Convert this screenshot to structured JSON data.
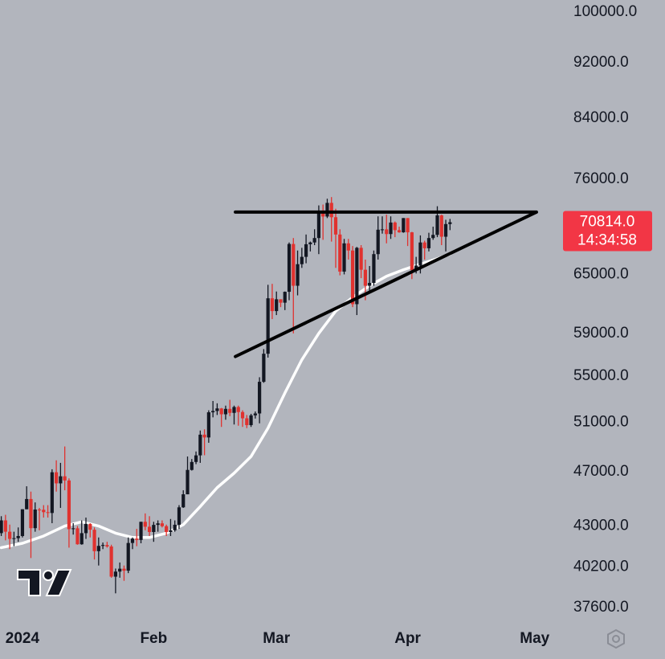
{
  "chart_data": {
    "type": "candlestick",
    "log_scale": true,
    "x": [
      -5,
      -4,
      -3,
      -2,
      -1,
      0,
      1,
      2,
      3,
      4,
      5,
      6,
      7,
      8,
      9,
      10,
      11,
      12,
      13,
      14,
      15,
      16,
      17,
      18,
      19,
      20,
      21,
      22,
      23,
      24,
      25,
      26,
      27,
      28,
      29,
      30,
      31,
      32,
      33,
      34,
      35,
      36,
      37,
      38,
      39,
      40,
      41,
      42,
      43,
      44,
      45,
      46,
      47,
      48,
      49,
      50,
      51,
      52,
      53,
      54,
      55,
      56,
      57,
      58,
      59,
      60,
      61,
      62,
      63,
      64,
      65,
      66,
      67,
      68,
      69,
      70,
      71,
      72,
      73,
      74,
      75,
      76,
      77,
      78,
      79,
      80,
      81,
      82,
      83,
      84,
      85,
      86,
      87,
      88,
      89,
      90,
      91,
      92,
      93,
      94,
      95,
      96,
      97,
      98,
      99,
      100,
      101
    ],
    "open": [
      42500,
      43400,
      42600,
      42100,
      42150,
      42300,
      44200,
      44950,
      42850,
      44180,
      44160,
      43990,
      43930,
      46970,
      46120,
      46660,
      46340,
      42780,
      42840,
      41730,
      42500,
      43150,
      42740,
      41260,
      41620,
      41680,
      41580,
      39570,
      39900,
      40090,
      39960,
      41820,
      42120,
      42030,
      43300,
      42950,
      42580,
      43080,
      43190,
      42990,
      42580,
      42700,
      43090,
      44340,
      45300,
      47150,
      47770,
      48290,
      49960,
      49730,
      51830,
      51940,
      52160,
      51660,
      52120,
      51780,
      52280,
      51850,
      51320,
      50750,
      51570,
      51730,
      54490,
      57060,
      62500,
      61200,
      62400,
      62050,
      63170,
      68330,
      63800,
      66100,
      66900,
      68300,
      68500,
      69000,
      72100,
      71480,
      73100,
      71400,
      69400,
      65300,
      68400,
      67600,
      61900,
      67900,
      65500,
      63800,
      64100,
      67200,
      69950,
      69990,
      69450,
      70780,
      69900,
      69650,
      71300,
      69650,
      65450,
      65950,
      68500,
      67850,
      69000,
      69360,
      71620,
      69150,
      70600
    ],
    "high": [
      43700,
      43800,
      43100,
      42600,
      42900,
      44200,
      45900,
      45500,
      44700,
      44300,
      44500,
      44500,
      47200,
      47900,
      47700,
      49000,
      46500,
      43200,
      43000,
      43400,
      43600,
      43200,
      42900,
      42200,
      41850,
      41900,
      41700,
      40100,
      40500,
      40300,
      42200,
      42200,
      42800,
      43300,
      43900,
      43700,
      43300,
      43400,
      43400,
      43100,
      43500,
      43400,
      44500,
      45600,
      48200,
      48000,
      48600,
      50300,
      50400,
      52000,
      52800,
      52600,
      52200,
      52400,
      52900,
      52400,
      52400,
      52000,
      51600,
      51700,
      51900,
      54900,
      57500,
      63900,
      64000,
      63200,
      62400,
      63200,
      68500,
      69000,
      67600,
      67900,
      69400,
      68600,
      70000,
      72800,
      72900,
      73600,
      73800,
      72400,
      70000,
      68900,
      68900,
      68100,
      68000,
      68200,
      66600,
      65900,
      67600,
      71500,
      71500,
      71700,
      71500,
      70900,
      70300,
      71300,
      71300,
      69700,
      66900,
      69300,
      68700,
      69600,
      70300,
      72700,
      71700,
      71100,
      71200
    ],
    "low": [
      42300,
      42000,
      41400,
      41600,
      41900,
      42200,
      44200,
      40800,
      42600,
      42700,
      43600,
      43600,
      43200,
      45500,
      44300,
      45600,
      41500,
      42400,
      41700,
      41700,
      42100,
      42200,
      40700,
      40300,
      41400,
      41500,
      39500,
      38500,
      39500,
      39300,
      39800,
      41400,
      41600,
      41800,
      42700,
      42300,
      41900,
      42600,
      42900,
      42300,
      42300,
      42600,
      42800,
      44300,
      45300,
      47100,
      47600,
      47700,
      48300,
      49300,
      51400,
      51600,
      50600,
      51200,
      51500,
      50800,
      50700,
      50600,
      50500,
      50600,
      51300,
      50900,
      54400,
      56700,
      60400,
      60800,
      61600,
      61300,
      62300,
      59000,
      62800,
      65700,
      66200,
      67500,
      68200,
      67200,
      68800,
      71300,
      68600,
      65700,
      64900,
      65000,
      66600,
      61600,
      60800,
      64600,
      62300,
      63300,
      63800,
      66600,
      69500,
      68400,
      68900,
      69100,
      69600,
      69600,
      68100,
      64500,
      65100,
      65100,
      66600,
      67500,
      68800,
      69100,
      68200,
      67500,
      69900
    ],
    "close": [
      43400,
      42600,
      42100,
      42150,
      42300,
      44200,
      44950,
      42850,
      44180,
      44160,
      43990,
      43930,
      46970,
      46120,
      46660,
      46340,
      42780,
      42840,
      41730,
      42500,
      43150,
      42740,
      41260,
      41620,
      41680,
      41580,
      39570,
      39900,
      40090,
      39960,
      41820,
      42120,
      42030,
      43300,
      42950,
      42580,
      43080,
      43190,
      42990,
      42580,
      42700,
      43090,
      44340,
      45300,
      47150,
      47770,
      48290,
      49960,
      49730,
      51830,
      51940,
      52160,
      51660,
      52120,
      51780,
      52280,
      51850,
      51320,
      50750,
      51570,
      51730,
      54490,
      57060,
      62500,
      61200,
      62400,
      62050,
      63170,
      68330,
      63800,
      66100,
      66900,
      68300,
      68500,
      69000,
      72100,
      71480,
      73100,
      71400,
      69400,
      65300,
      68400,
      67600,
      61900,
      67900,
      65500,
      63800,
      64100,
      67200,
      69950,
      69990,
      69450,
      70780,
      69900,
      69650,
      71300,
      69650,
      65450,
      65950,
      68500,
      67850,
      69000,
      69360,
      71620,
      69150,
      70600,
      70814
    ],
    "up_color": "#131722",
    "down_color": "#e0322f",
    "ma": {
      "color": "#ffffff",
      "x": [
        -5,
        0,
        5,
        10,
        14,
        18,
        22,
        26,
        30,
        34,
        38,
        42,
        46,
        50,
        54,
        58,
        62,
        66,
        70,
        74,
        78,
        82,
        86,
        90,
        94,
        98,
        101
      ],
      "values": [
        41500,
        41800,
        42300,
        43000,
        43300,
        43000,
        42500,
        42200,
        42200,
        42500,
        43100,
        44400,
        45800,
        46900,
        48200,
        50500,
        53500,
        56500,
        59000,
        61200,
        62600,
        63800,
        64800,
        65500,
        66100,
        66700,
        67200
      ]
    },
    "trendline_color": "#000000",
    "trendlines": [
      {
        "x": [
          50.3,
          121.4
        ],
        "y": [
          72000,
          72000
        ]
      },
      {
        "x": [
          50.3,
          121.4
        ],
        "y": [
          56800,
          72000
        ]
      }
    ],
    "price_label": "70814.0",
    "countdown": "14:34:58",
    "label_color": "#f23645",
    "xlim": [
      -5.3,
      127.5
    ],
    "ylim": [
      36680,
      102000
    ],
    "xticks": [
      {
        "value": 0,
        "label": "2024"
      },
      {
        "value": 31,
        "label": "Feb"
      },
      {
        "value": 60,
        "label": "Mar"
      },
      {
        "value": 91,
        "label": "Apr"
      },
      {
        "value": 121,
        "label": "May"
      }
    ],
    "yticks": [
      {
        "value": 100000,
        "label": "100000.0"
      },
      {
        "value": 92000,
        "label": "92000.0"
      },
      {
        "value": 84000,
        "label": "84000.0"
      },
      {
        "value": 76000,
        "label": "76000.0"
      },
      {
        "value": 65000,
        "label": "65000.0"
      },
      {
        "value": 59000,
        "label": "59000.0"
      },
      {
        "value": 55000,
        "label": "55000.0"
      },
      {
        "value": 51000,
        "label": "51000.0"
      },
      {
        "value": 47000,
        "label": "47000.0"
      },
      {
        "value": 43000,
        "label": "43000.0"
      },
      {
        "value": 40200,
        "label": "40200.0"
      },
      {
        "value": 37600,
        "label": "37600.0"
      }
    ]
  }
}
